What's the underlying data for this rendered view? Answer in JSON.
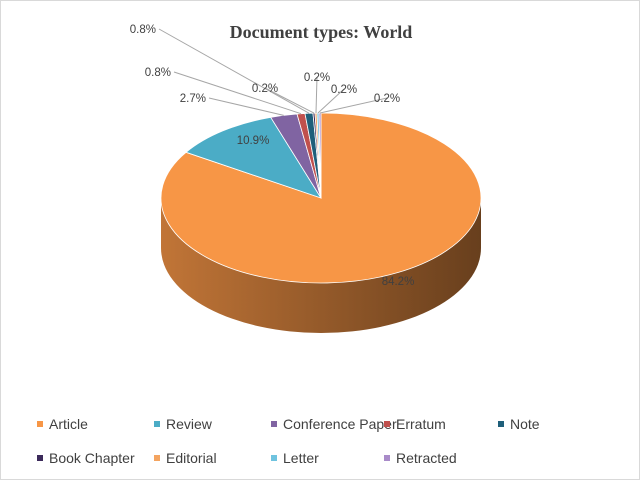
{
  "chart_data": {
    "type": "pie",
    "title": "Document types: World",
    "start_angle_deg": 0,
    "direction": "clockwise",
    "style": "3d",
    "legend_position": "bottom",
    "categories": [
      "Article",
      "Review",
      "Conference Paper",
      "Erratum",
      "Note",
      "Book Chapter",
      "Editorial",
      "Letter",
      "Retracted"
    ],
    "values": [
      84.2,
      10.9,
      2.7,
      0.8,
      0.8,
      0.2,
      0.2,
      0.2,
      0.2
    ],
    "labels": [
      "84.2%",
      "10.9%",
      "2.7%",
      "0.8%",
      "0.8%",
      "0.2%",
      "0.2%",
      "0.2%",
      "0.2%"
    ],
    "colors": [
      "#F79646",
      "#4BACC6",
      "#8064A2",
      "#C0504D",
      "#1F5F7A",
      "#3B2A5A",
      "#F4A460",
      "#6FC3DF",
      "#A98BC9"
    ]
  }
}
